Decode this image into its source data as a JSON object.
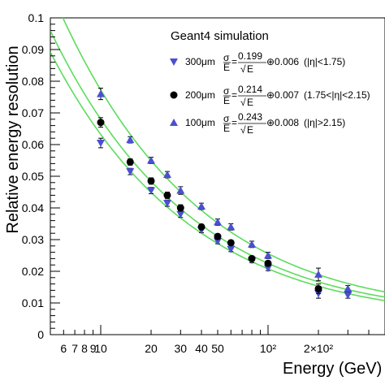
{
  "chart_data": {
    "type": "scatter",
    "title": "",
    "xlabel": "Energy (GeV)",
    "ylabel": "Relative energy resolution",
    "xscale": "log",
    "xlim": [
      5,
      500
    ],
    "ylim": [
      0,
      0.1
    ],
    "x_tick_labels": [
      {
        "value": 6,
        "label": "6"
      },
      {
        "value": 7,
        "label": "7"
      },
      {
        "value": 8,
        "label": "8"
      },
      {
        "value": 9,
        "label": "9"
      },
      {
        "value": 10,
        "label": "10"
      },
      {
        "value": 20,
        "label": "20"
      },
      {
        "value": 30,
        "label": "30"
      },
      {
        "value": 40,
        "label": "40"
      },
      {
        "value": 50,
        "label": "50"
      },
      {
        "value": 100,
        "label": "10²"
      },
      {
        "value": 200,
        "label": "2×10²"
      }
    ],
    "y_tick_labels": [
      {
        "value": 0,
        "label": "0"
      },
      {
        "value": 0.01,
        "label": "0.01"
      },
      {
        "value": 0.02,
        "label": "0.02"
      },
      {
        "value": 0.03,
        "label": "0.03"
      },
      {
        "value": 0.04,
        "label": "0.04"
      },
      {
        "value": 0.05,
        "label": "0.05"
      },
      {
        "value": 0.06,
        "label": "0.06"
      },
      {
        "value": 0.07,
        "label": "0.07"
      },
      {
        "value": 0.08,
        "label": "0.08"
      },
      {
        "value": 0.09,
        "label": "0.09"
      },
      {
        "value": 0.1,
        "label": "0.1"
      }
    ],
    "legend": {
      "title": "Geant4 simulation",
      "placement": "top-right"
    },
    "fit_color": "#5ddc5d",
    "series": [
      {
        "name": "300μm",
        "formula": "σ/E = 0.199/√E ⊕ 0.006",
        "region": "(|η|<1.75)",
        "marker": "triangle-down",
        "color": "#4b4fd0",
        "fit": {
          "a": 0.199,
          "c": 0.006
        },
        "points": [
          {
            "x": 10,
            "y": 0.0605,
            "err": 0.0015
          },
          {
            "x": 15,
            "y": 0.0515,
            "err": 0.001
          },
          {
            "x": 20,
            "y": 0.0455,
            "err": 0.001
          },
          {
            "x": 25,
            "y": 0.0415,
            "err": 0.001
          },
          {
            "x": 30,
            "y": 0.038,
            "err": 0.001
          },
          {
            "x": 40,
            "y": 0.033,
            "err": 0.0008
          },
          {
            "x": 50,
            "y": 0.0295,
            "err": 0.0008
          },
          {
            "x": 60,
            "y": 0.027,
            "err": 0.0008
          },
          {
            "x": 80,
            "y": 0.0235,
            "err": 0.0008
          },
          {
            "x": 100,
            "y": 0.021,
            "err": 0.0008
          },
          {
            "x": 200,
            "y": 0.013,
            "err": 0.0015
          },
          {
            "x": 300,
            "y": 0.0125,
            "err": 0.001
          }
        ]
      },
      {
        "name": "200μm",
        "formula": "σ/E = 0.214/√E ⊕ 0.007",
        "region": "(1.75<|η|<2.15)",
        "marker": "circle",
        "color": "#000000",
        "fit": {
          "a": 0.214,
          "c": 0.007
        },
        "points": [
          {
            "x": 10,
            "y": 0.067,
            "err": 0.0015
          },
          {
            "x": 15,
            "y": 0.0545,
            "err": 0.001
          },
          {
            "x": 20,
            "y": 0.0485,
            "err": 0.001
          },
          {
            "x": 25,
            "y": 0.044,
            "err": 0.001
          },
          {
            "x": 30,
            "y": 0.04,
            "err": 0.001
          },
          {
            "x": 40,
            "y": 0.034,
            "err": 0.0008
          },
          {
            "x": 50,
            "y": 0.031,
            "err": 0.0008
          },
          {
            "x": 60,
            "y": 0.029,
            "err": 0.0008
          },
          {
            "x": 80,
            "y": 0.024,
            "err": 0.0008
          },
          {
            "x": 100,
            "y": 0.0225,
            "err": 0.0008
          },
          {
            "x": 200,
            "y": 0.0145,
            "err": 0.0015
          }
        ]
      },
      {
        "name": "100μm",
        "formula": "σ/E = 0.243/√E ⊕ 0.008",
        "region": "(|η|>2.15)",
        "marker": "triangle-up",
        "color": "#4b4fd0",
        "fit": {
          "a": 0.243,
          "c": 0.008
        },
        "points": [
          {
            "x": 10,
            "y": 0.076,
            "err": 0.0018
          },
          {
            "x": 15,
            "y": 0.0615,
            "err": 0.001
          },
          {
            "x": 20,
            "y": 0.055,
            "err": 0.001
          },
          {
            "x": 25,
            "y": 0.0505,
            "err": 0.001
          },
          {
            "x": 30,
            "y": 0.0455,
            "err": 0.0012
          },
          {
            "x": 40,
            "y": 0.0405,
            "err": 0.001
          },
          {
            "x": 50,
            "y": 0.0355,
            "err": 0.001
          },
          {
            "x": 60,
            "y": 0.034,
            "err": 0.001
          },
          {
            "x": 80,
            "y": 0.0285,
            "err": 0.001
          },
          {
            "x": 100,
            "y": 0.025,
            "err": 0.001
          },
          {
            "x": 200,
            "y": 0.019,
            "err": 0.002
          },
          {
            "x": 300,
            "y": 0.0145,
            "err": 0.001
          }
        ]
      }
    ]
  },
  "legend_entries": [
    {
      "label": "300μm",
      "num": "0.199",
      "const": "⊕0.006",
      "region": "(|η|<1.75)"
    },
    {
      "label": "200μm",
      "num": "0.214",
      "const": "⊕0.007",
      "region": "(1.75<|η|<2.15)"
    },
    {
      "label": "100μm",
      "num": "0.243",
      "const": "⊕0.008",
      "region": "(|η|>2.15)"
    }
  ],
  "legend_symbols": {
    "sigma": "σ",
    "energy": "E",
    "sqrt": "√"
  }
}
